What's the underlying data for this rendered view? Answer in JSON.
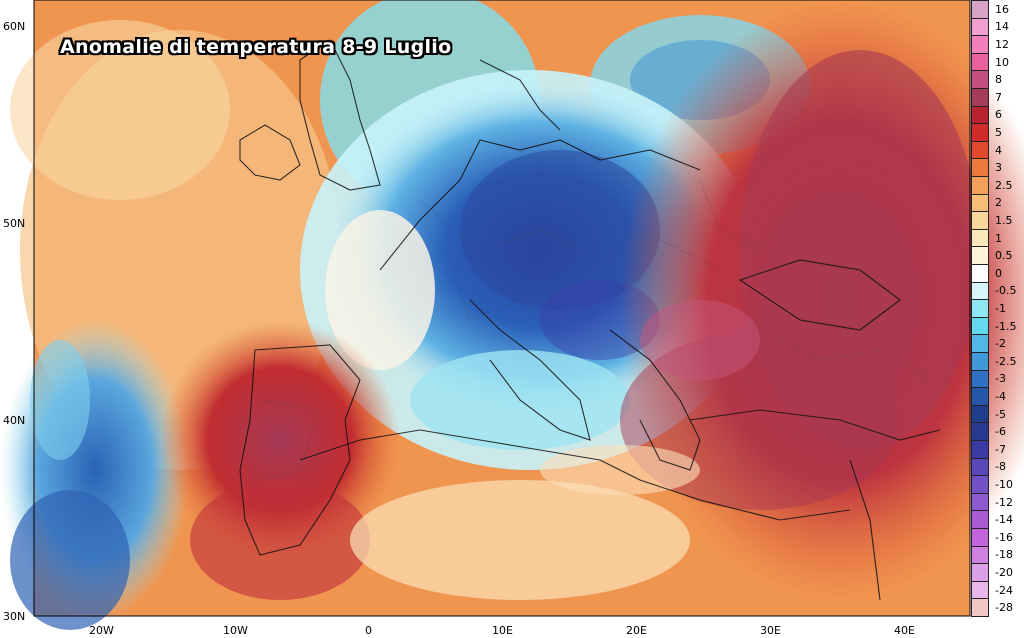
{
  "title": "Anomalie di temperatura 8-9 Luglio",
  "lat_labels": [
    "60N",
    "50N",
    "40N",
    "30N"
  ],
  "lon_labels": [
    "20W",
    "10W",
    "0",
    "10E",
    "20E",
    "30E",
    "40E"
  ],
  "colorbar": {
    "levels": [
      "16",
      "14",
      "12",
      "10",
      "8",
      "7",
      "6",
      "5",
      "4",
      "3",
      "2.5",
      "2",
      "1.5",
      "1",
      "0.5",
      "0",
      "-0.5",
      "-1",
      "-1.5",
      "-2",
      "-2.5",
      "-3",
      "-4",
      "-5",
      "-6",
      "-7",
      "-8",
      "-10",
      "-12",
      "-14",
      "-16",
      "-18",
      "-20",
      "-24",
      "-28"
    ],
    "colors": [
      "#d9a3c8",
      "#ef9fd0",
      "#f47fbd",
      "#e8609e",
      "#c44e7e",
      "#a53a5b",
      "#b7222f",
      "#cf2b2b",
      "#e04a2e",
      "#ec7a3b",
      "#f2a05a",
      "#f6bf79",
      "#f9d699",
      "#fbe8b8",
      "#fdf4d9",
      "#ffffff",
      "#d5f5fb",
      "#8ee7f2",
      "#62d9ee",
      "#4fb8e6",
      "#3f98d8",
      "#2f72c4",
      "#2556aa",
      "#1f3e8e",
      "#283a8f",
      "#3a3aa5",
      "#5a47b8",
      "#7251c6",
      "#8e58d0",
      "#a95bd6",
      "#c364dc",
      "#cf80e0",
      "#dba0e6",
      "#e8b6ea",
      "#f2c6c6"
    ]
  }
}
